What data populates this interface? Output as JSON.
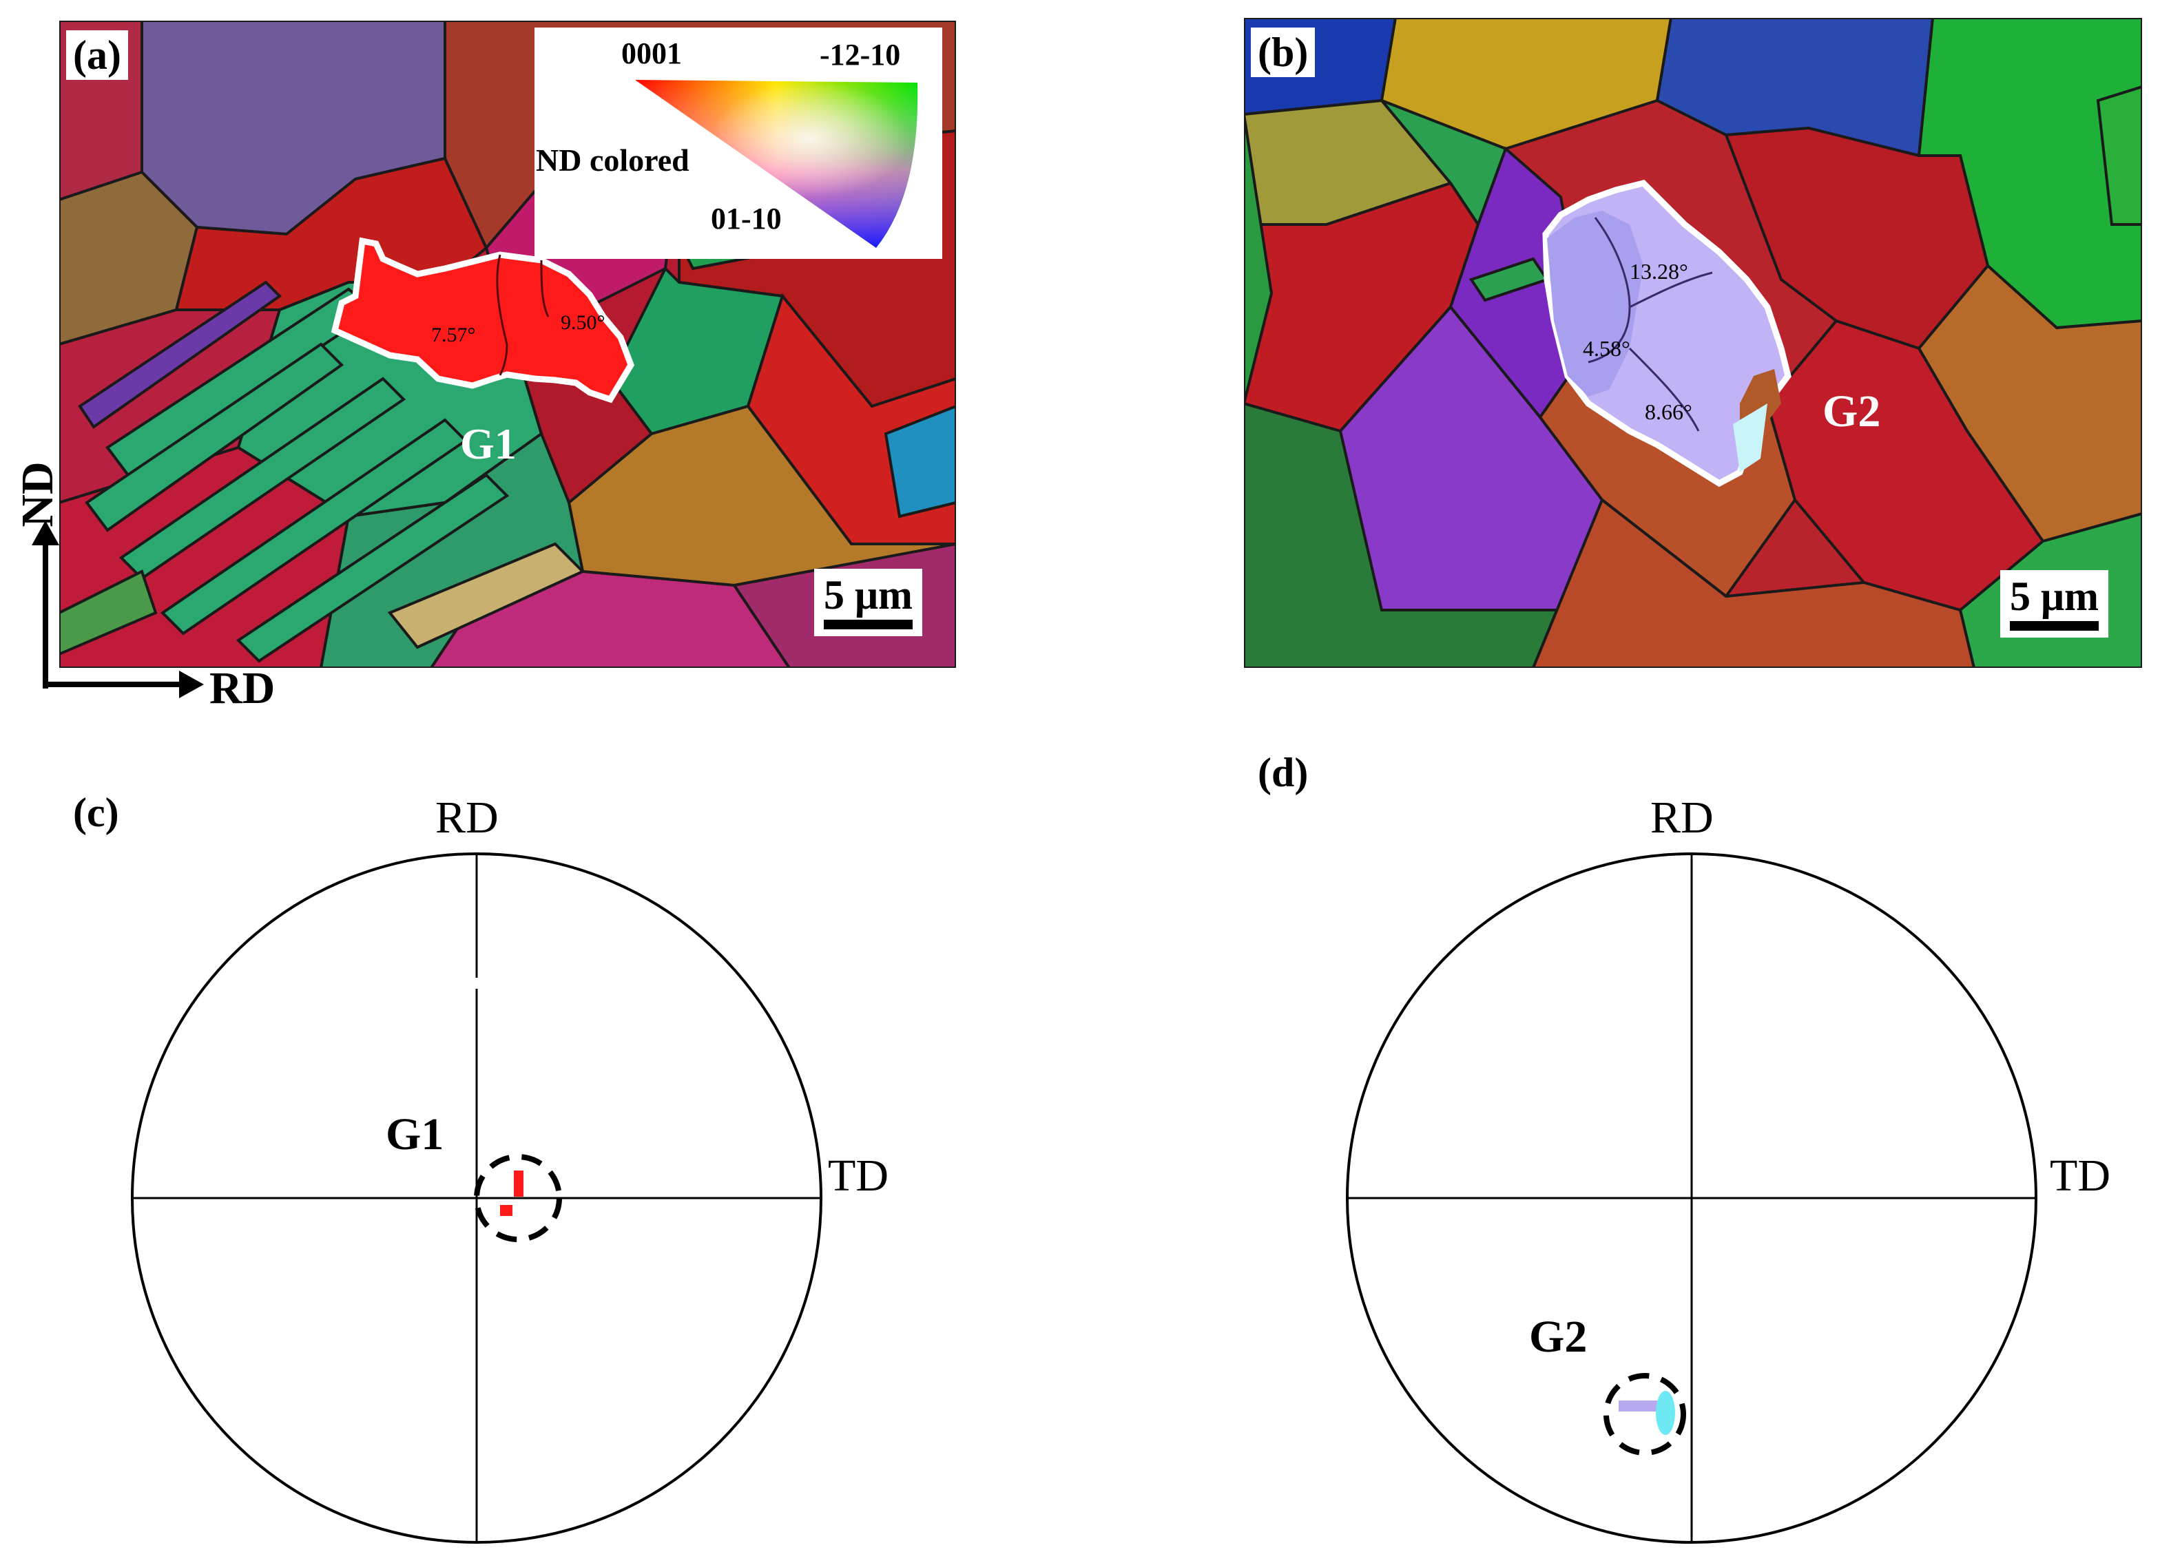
{
  "panels": {
    "a": {
      "label": "(a)",
      "legend": {
        "corner_0001": "0001",
        "corner_m12m10": "-12-10",
        "corner_01m10": "01-10",
        "title": "ND colored"
      },
      "grain_name": "G1",
      "misorientations": [
        "7.57°",
        "9.50°"
      ],
      "scale_bar": "5 μm",
      "axes": {
        "vertical": "ND",
        "horizontal": "RD"
      }
    },
    "b": {
      "label": "(b)",
      "grain_name": "G2",
      "misorientations": [
        "13.28°",
        "4.58°",
        "8.66°"
      ],
      "scale_bar": "5 μm"
    },
    "c": {
      "label": "(c)",
      "top_axis": "RD",
      "right_axis": "TD",
      "grain_name": "G1"
    },
    "d": {
      "label": "(d)",
      "top_axis": "RD",
      "right_axis": "TD",
      "grain_name": "G2"
    }
  },
  "colors": {
    "grain_g1": "#ff1a1a",
    "grain_g2": "#b8a8f0",
    "outline": "#ffffff",
    "grain_boundary": "#000000"
  }
}
